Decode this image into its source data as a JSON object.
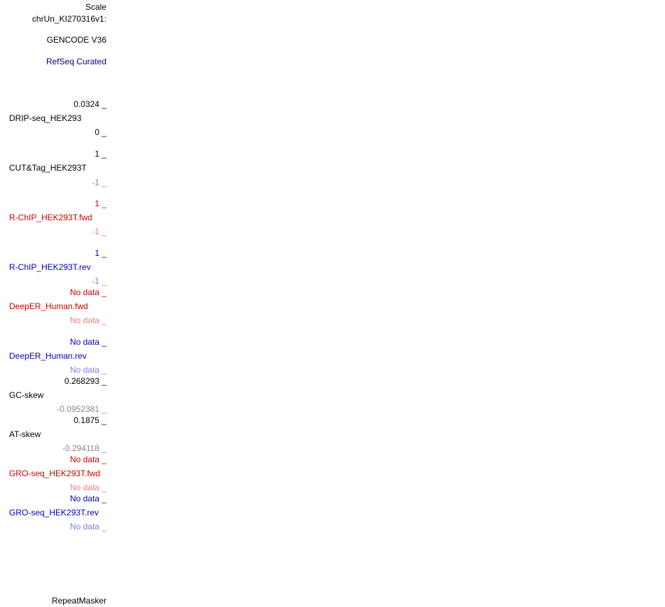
{
  "header": {
    "scale": "Scale",
    "chrom": "chrUn_KI270316v1:",
    "gencode": "GENCODE V36",
    "refseq": "RefSeq Curated",
    "refseq_color": "#000080"
  },
  "tracks": [
    {
      "name": "DRIP-seq_HEK293",
      "max": "0.0324 _",
      "min": "0 _",
      "color": "#000000",
      "min_color": "#000000"
    },
    {
      "name": "CUT&Tag_HEK293T",
      "max": "1 _",
      "min": "-1 _",
      "color": "#000000",
      "min_color": "#888888"
    },
    {
      "name": "R-ChIP_HEK293T.fwd",
      "max": "1 _",
      "min": "-1 _",
      "color": "#cc0000",
      "min_color": "#e88080"
    },
    {
      "name": "R-ChIP_HEK293T.rev",
      "max": "1 _",
      "min": "-1 _",
      "color": "#0000bb",
      "min_color": "#8080dd"
    },
    {
      "name": "DeepER_Human.fwd",
      "max": "No data _",
      "min": "No data _",
      "color": "#cc0000",
      "min_color": "#e88080"
    },
    {
      "name": "DeepER_Human.rev",
      "max": "No data _",
      "min": "No data _",
      "color": "#0000bb",
      "min_color": "#8080dd"
    },
    {
      "name": "GC-skew",
      "max": "0.268293 _",
      "min": "-0.0952381 _",
      "color": "#000000",
      "min_color": "#888888"
    },
    {
      "name": "AT-skew",
      "max": "0.1875 _",
      "min": "-0.294118 _",
      "color": "#000000",
      "min_color": "#888888"
    },
    {
      "name": "GRO-seq_HEK293T.fwd",
      "max": "No data _",
      "min": "No data _",
      "color": "#cc0000",
      "min_color": "#e88080"
    },
    {
      "name": "GRO-seq_HEK293T.rev",
      "max": "No data _",
      "min": "No data _",
      "color": "#0000bb",
      "min_color": "#8080dd"
    }
  ],
  "footer": {
    "repeatmasker": "RepeatMasker"
  }
}
